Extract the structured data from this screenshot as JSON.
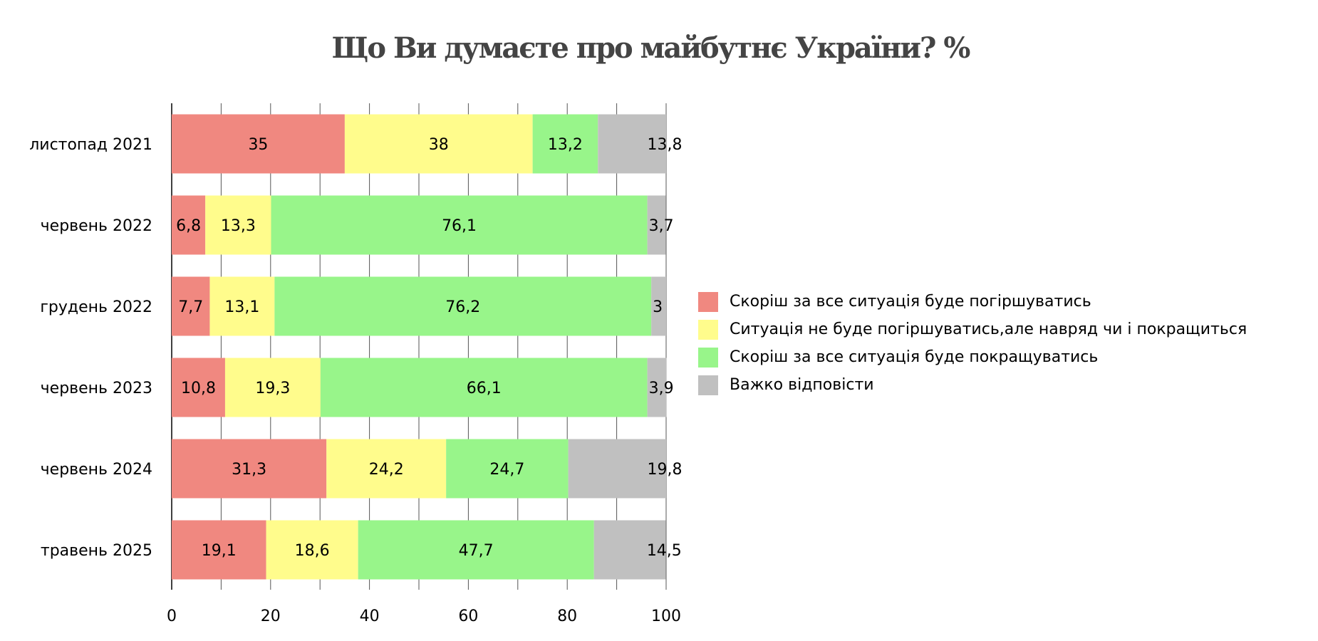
{
  "chart_data": {
    "type": "bar",
    "orientation": "horizontal",
    "stacked": true,
    "title": "Що Ви думаєте про майбутнє України? %",
    "categories": [
      "листопад 2021",
      "червень 2022",
      "грудень 2022",
      "червень 2023",
      "червень 2024",
      "травень 2025"
    ],
    "series": [
      {
        "name": "Скоріш за все ситуація буде погіршуватись",
        "color": "#F08880",
        "values": [
          35,
          6.8,
          7.7,
          10.8,
          31.3,
          19.1
        ],
        "labels": [
          "35",
          "6,8",
          "7,7",
          "10,8",
          "31,3",
          "19,1"
        ]
      },
      {
        "name": "Ситуація не буде погіршуватись,але навряд чи і покращиться",
        "color": "#FFFC8C",
        "values": [
          38,
          13.3,
          13.1,
          19.3,
          24.2,
          18.6
        ],
        "labels": [
          "38",
          "13,3",
          "13,1",
          "19,3",
          "24,2",
          "18,6"
        ]
      },
      {
        "name": "Скоріш за все ситуація буде покращуватись",
        "color": "#98F58A",
        "values": [
          13.2,
          76.1,
          76.2,
          66.1,
          24.7,
          47.7
        ],
        "labels": [
          "13,2",
          "76,1",
          "76,2",
          "66,1",
          "24,7",
          "47,7"
        ]
      },
      {
        "name": "Важко відповісти",
        "color": "#C0C0C0",
        "values": [
          13.8,
          3.7,
          3,
          3.9,
          19.8,
          14.5
        ],
        "labels": [
          "13,8",
          "3,7",
          "3",
          "3,9",
          "19,8",
          "14,5"
        ]
      }
    ],
    "xlim": [
      0,
      100
    ],
    "xticks": [
      "0",
      "20",
      "40",
      "60",
      "80",
      "100"
    ],
    "xlabel": "",
    "ylabel": "",
    "grid": "vertical lines every 10",
    "legend_position": "right"
  }
}
